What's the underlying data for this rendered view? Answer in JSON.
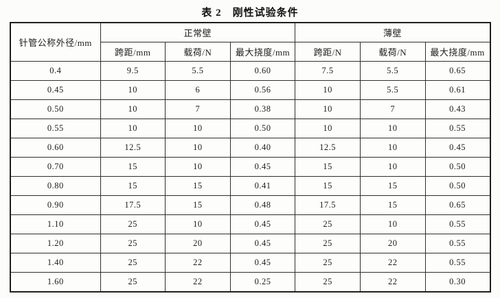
{
  "title": "表 2　刚性试验条件",
  "table": {
    "col1_header": "针管公称外径/mm",
    "groups": [
      {
        "label": "正常壁",
        "sub": [
          "跨距/mm",
          "载荷/N",
          "最大挠度/mm"
        ]
      },
      {
        "label": "薄壁",
        "sub": [
          "跨距/N",
          "载荷/N",
          "最大挠度/mm"
        ]
      }
    ],
    "rows": [
      [
        "0.4",
        "9.5",
        "5.5",
        "0.60",
        "7.5",
        "5.5",
        "0.65"
      ],
      [
        "0.45",
        "10",
        "6",
        "0.56",
        "10",
        "5.5",
        "0.61"
      ],
      [
        "0.50",
        "10",
        "7",
        "0.38",
        "10",
        "7",
        "0.43"
      ],
      [
        "0.55",
        "10",
        "10",
        "0.50",
        "10",
        "10",
        "0.55"
      ],
      [
        "0.60",
        "12.5",
        "10",
        "0.40",
        "12.5",
        "10",
        "0.45"
      ],
      [
        "0.70",
        "15",
        "10",
        "0.45",
        "15",
        "10",
        "0.50"
      ],
      [
        "0.80",
        "15",
        "15",
        "0.41",
        "15",
        "15",
        "0.50"
      ],
      [
        "0.90",
        "17.5",
        "15",
        "0.48",
        "17.5",
        "15",
        "0.65"
      ],
      [
        "1.10",
        "25",
        "10",
        "0.45",
        "25",
        "10",
        "0.55"
      ],
      [
        "1.20",
        "25",
        "20",
        "0.45",
        "25",
        "20",
        "0.55"
      ],
      [
        "1.40",
        "25",
        "22",
        "0.45",
        "25",
        "22",
        "0.55"
      ],
      [
        "1.60",
        "25",
        "22",
        "0.25",
        "25",
        "22",
        "0.30"
      ]
    ]
  },
  "colors": {
    "paper": "#fcfcfa",
    "ink": "#1c1c1a",
    "border": "#2e2e2c"
  }
}
